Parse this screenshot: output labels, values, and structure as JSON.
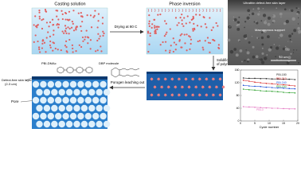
{
  "labels": {
    "casting_solution": "Casting solution",
    "phase_inversion": "Phase inversion",
    "drying": "Drying at 80 C",
    "solidification": "Solidification",
    "solidification_2": "of polymer",
    "leaching": "Porogen leaching out",
    "pbi": "PBI-DMAc",
    "dbp": "DBP molecule",
    "skin": "Defect-free skin layer",
    "skin_thickness": "(2-3 um)",
    "pore": "Pore"
  },
  "sem": {
    "top_label": "Ultrathin defect-free skin layer",
    "middle_label": "Macroporous support",
    "scale_bar": "10 um"
  },
  "inset_chart": {
    "type": "line",
    "x_label": "Cycle number",
    "x": [
      1,
      3,
      5,
      7,
      9,
      11,
      13,
      15,
      17,
      19
    ],
    "xlim": [
      0,
      20
    ],
    "xticks": [
      0,
      5,
      10,
      15,
      20
    ],
    "ylim": [
      0,
      160
    ],
    "yticks": [
      0,
      40,
      80,
      120,
      160
    ],
    "series": [
      {
        "name": "PBI-180",
        "color": "#222222",
        "values": [
          135,
          134,
          134,
          133,
          133,
          132,
          132,
          131,
          131,
          130
        ]
      },
      {
        "name": "PBI-210",
        "color": "#d62728",
        "values": [
          128,
          125,
          122,
          120,
          118,
          117,
          115,
          114,
          112,
          110
        ]
      },
      {
        "name": "PBI-240",
        "color": "#1f4fd6",
        "values": [
          112,
          110,
          109,
          108,
          106,
          105,
          104,
          103,
          102,
          101
        ]
      },
      {
        "name": "PBI-150",
        "color": "#2ca02c",
        "values": [
          100,
          98,
          97,
          95,
          94,
          93,
          92,
          90,
          89,
          88
        ]
      },
      {
        "name": "PBI-0",
        "color": "#e377c2",
        "values": [
          45,
          44,
          43,
          42,
          41,
          40,
          40,
          39,
          38,
          38
        ]
      }
    ]
  }
}
